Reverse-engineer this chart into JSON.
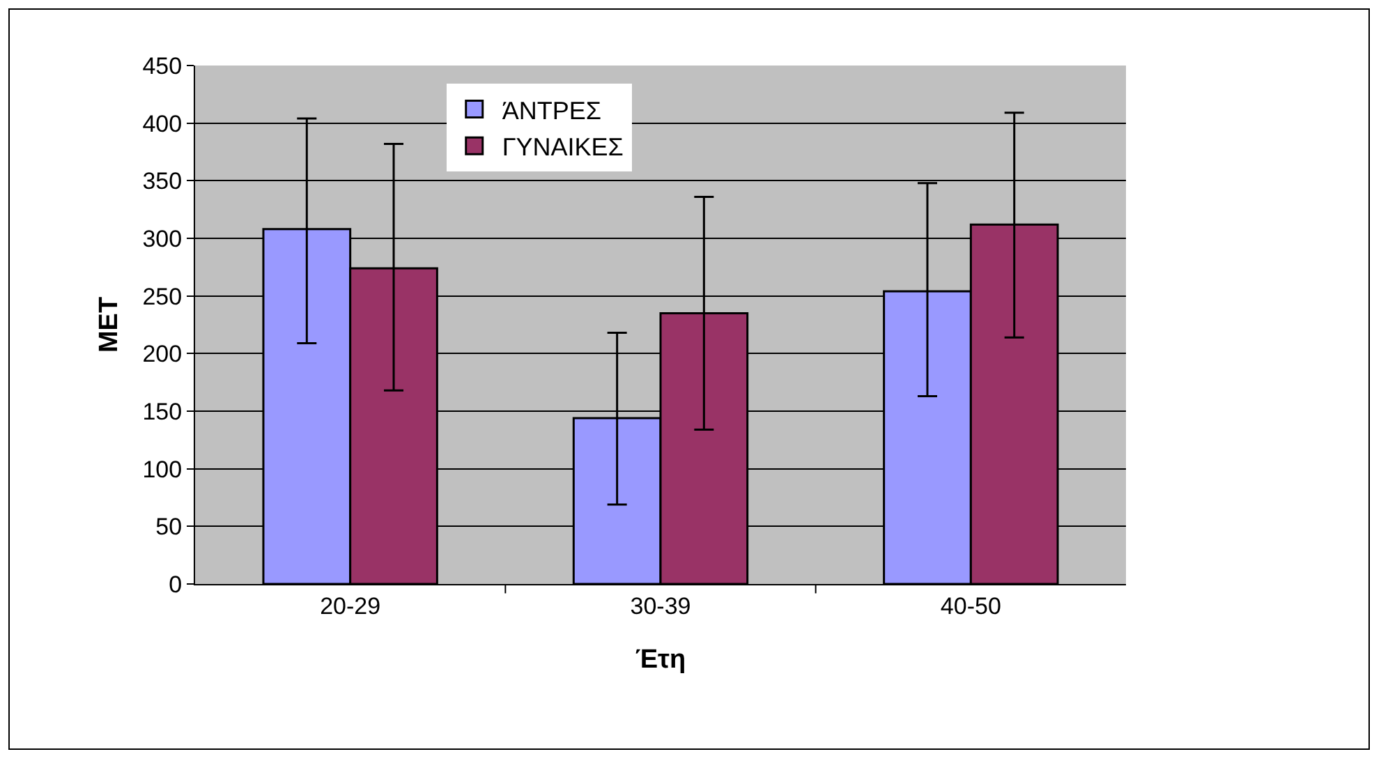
{
  "chart_data": {
    "type": "bar",
    "xlabel": "Έτη",
    "ylabel": "MET",
    "categories": [
      "20-29",
      "30-39",
      "40-50"
    ],
    "series": [
      {
        "name": "ΆΝΤΡΕΣ",
        "color": "#9999ff",
        "values": [
          308,
          144,
          254
        ],
        "errors": [
          [
            209,
            404
          ],
          [
            69,
            218
          ],
          [
            163,
            348
          ]
        ]
      },
      {
        "name": "ΓΥΝΑΙΚΕΣ",
        "color": "#993366",
        "values": [
          274,
          235,
          312
        ],
        "errors": [
          [
            168,
            382
          ],
          [
            134,
            336
          ],
          [
            214,
            409
          ]
        ]
      }
    ],
    "ylim": [
      0,
      450
    ],
    "yticks": [
      0,
      50,
      100,
      150,
      200,
      250,
      300,
      350,
      400,
      450
    ],
    "grid": "y",
    "legend": "top"
  }
}
